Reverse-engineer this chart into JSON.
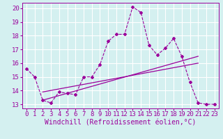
{
  "background_color": "#d4f0f0",
  "grid_color": "#b8e8e8",
  "line_color": "#9b009b",
  "xlim": [
    -0.5,
    23.5
  ],
  "ylim": [
    12.7,
    20.4
  ],
  "xticks": [
    0,
    1,
    2,
    3,
    4,
    5,
    6,
    7,
    8,
    9,
    10,
    11,
    12,
    13,
    14,
    15,
    16,
    17,
    18,
    19,
    20,
    21,
    22,
    23
  ],
  "yticks": [
    13,
    14,
    15,
    16,
    17,
    18,
    19,
    20
  ],
  "xlabel": "Windchill (Refroidissement éolien,°C)",
  "main_x": [
    0,
    1,
    2,
    3,
    4,
    5,
    6,
    7,
    8,
    9,
    10,
    11,
    12,
    13,
    14,
    15,
    16,
    17,
    18,
    19,
    20,
    21,
    22,
    23
  ],
  "main_y": [
    15.6,
    15.0,
    13.3,
    13.1,
    13.9,
    13.8,
    13.7,
    15.0,
    15.0,
    15.9,
    17.6,
    18.1,
    18.1,
    20.1,
    19.7,
    17.3,
    16.6,
    17.1,
    17.8,
    16.5,
    14.6,
    13.1,
    13.0,
    13.0
  ],
  "line2_x": [
    2,
    21
  ],
  "line2_y": [
    13.3,
    16.5
  ],
  "line3_x": [
    2,
    21
  ],
  "line3_y": [
    13.9,
    16.0
  ],
  "tick_fontsize": 6.5,
  "xlabel_fontsize": 7
}
